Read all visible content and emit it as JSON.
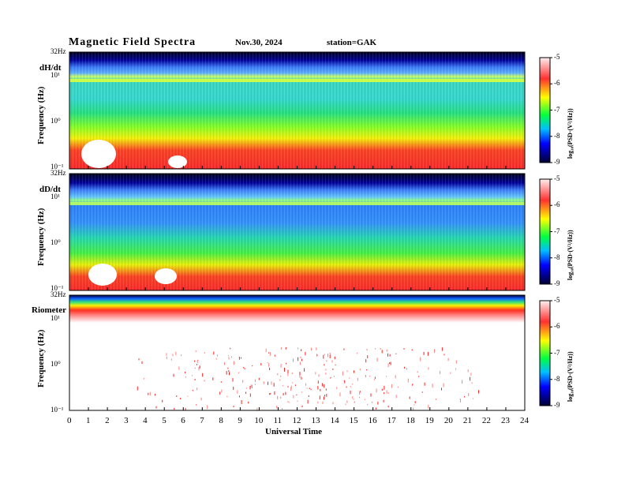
{
  "header": {
    "title": "Magnetic  Field  Spectra",
    "date": "Nov.30, 2024",
    "station": "station=GAK"
  },
  "panels": [
    {
      "label": "dH/dt",
      "top_tick": "32Hz",
      "y_ticks": [
        "10¹",
        "10⁰",
        "10⁻¹"
      ]
    },
    {
      "label": "dD/dt",
      "top_tick": "32Hz",
      "y_ticks": [
        "10¹",
        "10⁰",
        "10⁻¹"
      ]
    },
    {
      "label": "Riometer",
      "top_tick": "32Hz",
      "y_ticks": [
        "10¹",
        "10⁰",
        "10⁻¹"
      ]
    }
  ],
  "y_axis_label": "Frequency  (Hz)",
  "x_axis_label": "Universal  Time",
  "colorbar": {
    "label": "log₁₀(PSD·(V²/Hz))",
    "ticks": [
      "-5",
      "-6",
      "-7",
      "-8",
      "-9"
    ],
    "colors": [
      "#fff0f0",
      "#ff3030",
      "#ffff00",
      "#00ff40",
      "#00c0ff",
      "#0000ff",
      "#000033"
    ]
  },
  "chart_data": {
    "type": "heatmap",
    "x_ticks": [
      "0",
      "1",
      "2",
      "3",
      "4",
      "5",
      "6",
      "7",
      "8",
      "9",
      "10",
      "11",
      "12",
      "13",
      "14",
      "15",
      "16",
      "17",
      "18",
      "19",
      "20",
      "21",
      "22",
      "23",
      "24"
    ],
    "x_range": [
      0,
      24
    ],
    "xlabel": "Universal  Time",
    "ylabel": "Frequency  (Hz)",
    "y_range": [
      0.1,
      32
    ],
    "y_scale": "log",
    "color_range": [
      -9,
      -5
    ],
    "series": [
      {
        "name": "dH/dt"
      },
      {
        "name": "dD/dt"
      },
      {
        "name": "Riometer"
      }
    ]
  }
}
